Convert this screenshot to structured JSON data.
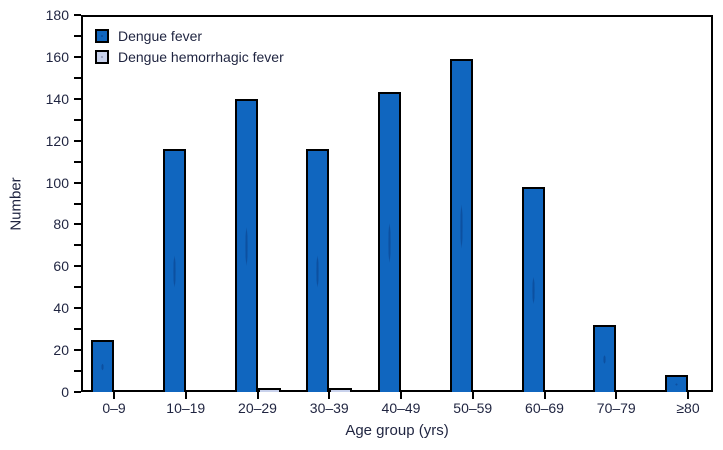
{
  "chart_data": {
    "type": "bar",
    "title": "",
    "xlabel": "Age group (yrs)",
    "ylabel": "Number",
    "categories": [
      "0–9",
      "10–19",
      "20–29",
      "30–39",
      "40–49",
      "50–59",
      "60–69",
      "70–79",
      "≥80"
    ],
    "series": [
      {
        "name": "Dengue fever",
        "color": "#1066bf",
        "values": [
          25,
          116,
          140,
          116,
          143,
          159,
          98,
          32,
          8
        ]
      },
      {
        "name": "Dengue hemorrhagic fever",
        "color": "#c9d2ec",
        "values": [
          0,
          0,
          2,
          2,
          1,
          1,
          0,
          0,
          0
        ]
      }
    ],
    "ylim": [
      0,
      180
    ],
    "ytick_step": 20,
    "yminor_step": 10,
    "grid": false,
    "legend_position": "top-left"
  },
  "colors": {
    "axis": "#000000",
    "text": "#1f2440",
    "background": "#ffffff",
    "bar_border": "#000000"
  }
}
